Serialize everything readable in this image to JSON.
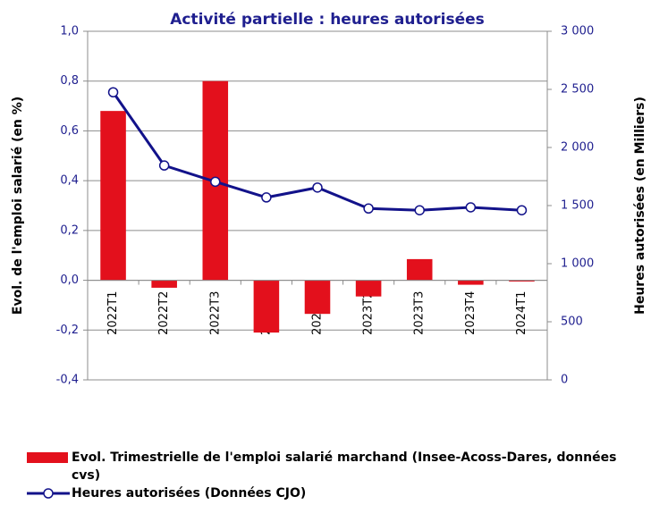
{
  "chart_data": {
    "type": "bar-line",
    "title": "Activité partielle : heures autorisées",
    "y_label": "Evol. de l'emploi salarié (en %)",
    "y2_label": "Heures autorisées (en Milliers)",
    "categories": [
      "2022T1",
      "2022T2",
      "2022T3",
      "2022T4",
      "2023T1",
      "2023T2",
      "2023T3",
      "2023T4",
      "2024T1"
    ],
    "series": [
      {
        "name": "Evol. Trimestrielle de l'emploi salarié marchand (Insee-Acoss-Dares, données cvs)",
        "type": "bar",
        "color": "#e3101c",
        "values": [
          0.68,
          -0.03,
          0.8,
          -0.21,
          -0.135,
          -0.065,
          0.085,
          -0.018,
          -0.005
        ]
      },
      {
        "name": "Heures autorisées (Données CJO)",
        "type": "line",
        "axis": "y2",
        "color": "#12128a",
        "values": [
          2475,
          1845,
          1705,
          1570,
          1655,
          1475,
          1460,
          1485,
          1460
        ]
      }
    ],
    "ylim": [
      -0.4,
      1.0
    ],
    "yticks": [
      {
        "value": -0.4,
        "label": "-0,4"
      },
      {
        "value": -0.2,
        "label": "-0,2"
      },
      {
        "value": 0,
        "label": "0,0"
      },
      {
        "value": 0.2,
        "label": "0,2"
      },
      {
        "value": 0.4,
        "label": "0,4"
      },
      {
        "value": 0.6,
        "label": "0,6"
      },
      {
        "value": 0.8,
        "label": "0,8"
      },
      {
        "value": 1.0,
        "label": "1,0"
      }
    ],
    "y2lim": [
      0,
      3000
    ],
    "y2ticks": [
      0,
      500,
      {
        "value": 1000,
        "label": "1 000"
      },
      {
        "value": 1500,
        "label": "1 500"
      },
      {
        "value": 2000,
        "label": "2 000"
      },
      {
        "value": 2500,
        "label": "2 500"
      },
      {
        "value": 3000,
        "label": "3 000"
      }
    ],
    "grid": true
  }
}
